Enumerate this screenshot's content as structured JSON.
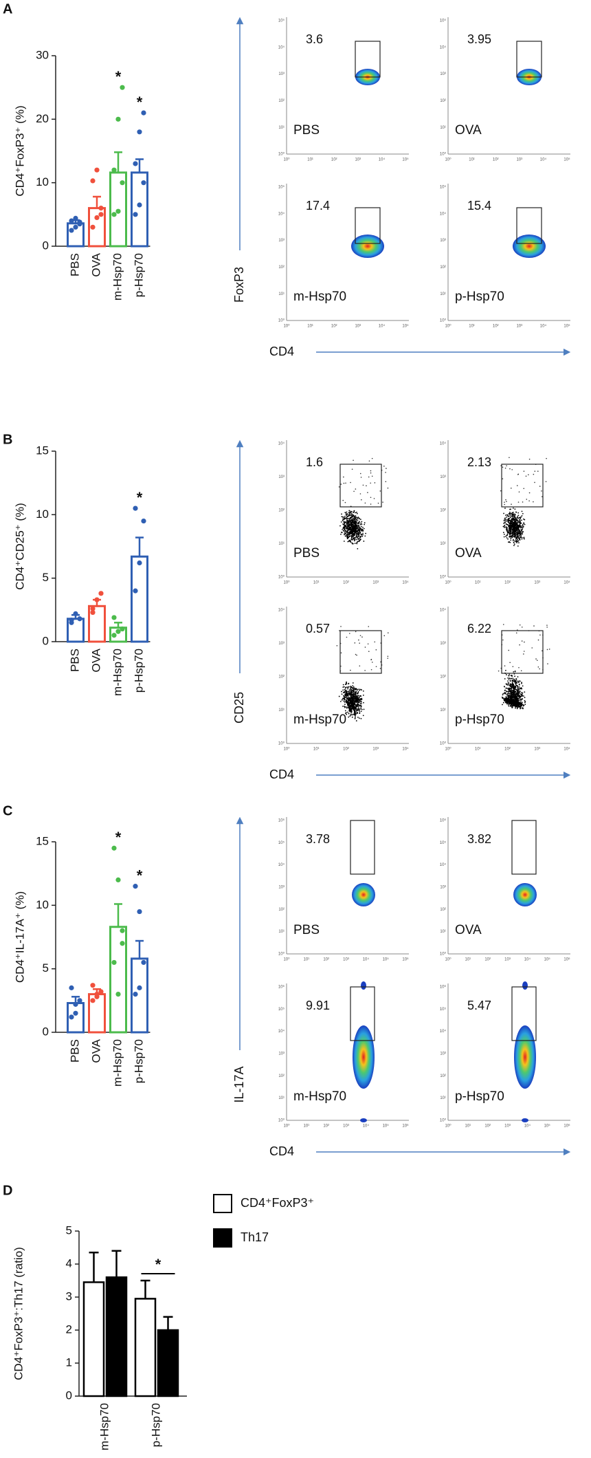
{
  "panel_labels": [
    "A",
    "B",
    "C",
    "D"
  ],
  "chart_data": [
    {
      "type": "bar",
      "y_label": "CD4⁺FoxP3⁺ (%)",
      "categories": [
        "PBS",
        "OVA",
        "m-Hsp70",
        "p-Hsp70"
      ],
      "colors": [
        "#2f5fb3",
        "#f0503c",
        "#4cbb4c",
        "#2f5fb3"
      ],
      "values": [
        3.6,
        6,
        11.6,
        11.6
      ],
      "errors": [
        0.5,
        1.8,
        3.2,
        2.1
      ],
      "points": [
        [
          2.5,
          3,
          3.5,
          4,
          4.4,
          3.8
        ],
        [
          3,
          4.5,
          6,
          10.3,
          12,
          5
        ],
        [
          5,
          5.5,
          10,
          12,
          20,
          25
        ],
        [
          5,
          6.5,
          10,
          13,
          18,
          21
        ]
      ],
      "significance": [
        null,
        null,
        "*",
        "*"
      ],
      "ylim": [
        0,
        30
      ],
      "yticks": [
        0,
        10,
        20,
        30
      ]
    },
    {
      "type": "bar",
      "y_label": "CD4⁺CD25⁺ (%)",
      "categories": [
        "PBS",
        "OVA",
        "m-Hsp70",
        "p-Hsp70"
      ],
      "colors": [
        "#2f5fb3",
        "#f0503c",
        "#4cbb4c",
        "#2f5fb3"
      ],
      "values": [
        1.8,
        2.8,
        1.1,
        6.7
      ],
      "errors": [
        0.3,
        0.5,
        0.4,
        1.5
      ],
      "points": [
        [
          1.5,
          2.2,
          1.8,
          1.7
        ],
        [
          2.3,
          3.3,
          3.8,
          2.6
        ],
        [
          0.5,
          0.8,
          1.0,
          1.9
        ],
        [
          4,
          6.2,
          9.5,
          10.5
        ]
      ],
      "significance": [
        null,
        null,
        null,
        "*"
      ],
      "ylim": [
        0,
        15
      ],
      "yticks": [
        0,
        5,
        10,
        15
      ]
    },
    {
      "type": "bar",
      "y_label": "CD4⁺IL-17A⁺ (%)",
      "categories": [
        "PBS",
        "OVA",
        "m-Hsp70",
        "p-Hsp70"
      ],
      "colors": [
        "#2f5fb3",
        "#f0503c",
        "#4cbb4c",
        "#2f5fb3"
      ],
      "values": [
        2.3,
        3.0,
        8.3,
        5.8
      ],
      "errors": [
        0.5,
        0.4,
        1.8,
        1.4
      ],
      "points": [
        [
          1.2,
          2.2,
          2.5,
          3.5,
          1.5
        ],
        [
          2.5,
          3,
          3.2,
          3.7,
          2.8
        ],
        [
          14.5,
          12,
          8,
          5.5,
          3,
          7
        ],
        [
          11.5,
          9.5,
          5.5,
          3,
          3.5
        ]
      ],
      "significance": [
        null,
        null,
        "*",
        "*"
      ],
      "ylim": [
        0,
        15
      ],
      "yticks": [
        0,
        5,
        10,
        15
      ]
    },
    {
      "type": "grouped_bar",
      "y_label": "CD4⁺FoxP3⁺:Th17 (ratio)",
      "categories": [
        "m-Hsp70",
        "p-Hsp70"
      ],
      "series": [
        {
          "name": "CD4⁺FoxP3⁺",
          "color": "#ffffff",
          "values": [
            3.45,
            2.95
          ],
          "errors": [
            0.9,
            0.55
          ]
        },
        {
          "name": "Th17",
          "color": "#000000",
          "values": [
            3.6,
            2.0
          ],
          "errors": [
            0.8,
            0.4
          ]
        }
      ],
      "bracket_label": "*",
      "ylim": [
        0,
        5
      ],
      "yticks": [
        0,
        1,
        2,
        3,
        4,
        5
      ]
    }
  ],
  "flow_panels": [
    {
      "y_label": "FoxP3",
      "x_label": "CD4",
      "ticks": [
        "10⁰",
        "10¹",
        "10²",
        "10³",
        "10⁴",
        "10⁵"
      ],
      "plots": [
        {
          "label": "PBS",
          "gate_value": 3.6
        },
        {
          "label": "OVA",
          "gate_value": 3.95
        },
        {
          "label": "m-Hsp70",
          "gate_value": 17.4
        },
        {
          "label": "p-Hsp70",
          "gate_value": 15.4
        }
      ]
    },
    {
      "y_label": "CD25",
      "x_label": "CD4",
      "ticks": [
        "10⁰",
        "10¹",
        "10²",
        "10³",
        "10⁴"
      ],
      "plots": [
        {
          "label": "PBS",
          "gate_value": 1.6
        },
        {
          "label": "OVA",
          "gate_value": 2.13
        },
        {
          "label": "m-Hsp70",
          "gate_value": 0.57
        },
        {
          "label": "p-Hsp70",
          "gate_value": 6.22
        }
      ]
    },
    {
      "y_label": "IL-17A",
      "x_label": "CD4",
      "ticks": [
        "10⁰",
        "10¹",
        "10²",
        "10³",
        "10⁴",
        "10⁵",
        "10⁶"
      ],
      "plots": [
        {
          "label": "PBS",
          "gate_value": 3.78
        },
        {
          "label": "OVA",
          "gate_value": 3.82
        },
        {
          "label": "m-Hsp70",
          "gate_value": 9.91
        },
        {
          "label": "p-Hsp70",
          "gate_value": 5.47
        }
      ]
    }
  ]
}
